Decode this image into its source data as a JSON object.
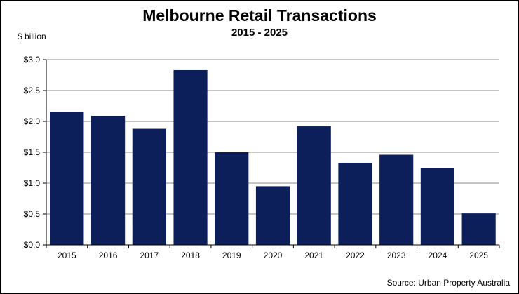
{
  "chart_data": {
    "type": "bar",
    "title": "Melbourne Retail Transactions",
    "subtitle": "2015 - 2025",
    "ylabel": "$ billion",
    "xlabel": "",
    "source": "Source: Urban Property Australia",
    "categories": [
      "2015",
      "2016",
      "2017",
      "2018",
      "2019",
      "2020",
      "2021",
      "2022",
      "2023",
      "2024",
      "2025"
    ],
    "values": [
      2.15,
      2.09,
      1.88,
      2.83,
      1.5,
      0.95,
      1.92,
      1.33,
      1.46,
      1.24,
      0.51
    ],
    "ylim": [
      0,
      3.0
    ],
    "yticks": [
      0,
      0.5,
      1.0,
      1.5,
      2.0,
      2.5,
      3.0
    ],
    "ytick_labels": [
      "$0.0",
      "$0.5",
      "$1.0",
      "$1.5",
      "$2.0",
      "$2.5",
      "$3.0"
    ],
    "grid": true,
    "legend": "none",
    "colors": {
      "bar": "#0c1f5b",
      "grid": "#8c8c8c",
      "axis": "#000000"
    }
  }
}
